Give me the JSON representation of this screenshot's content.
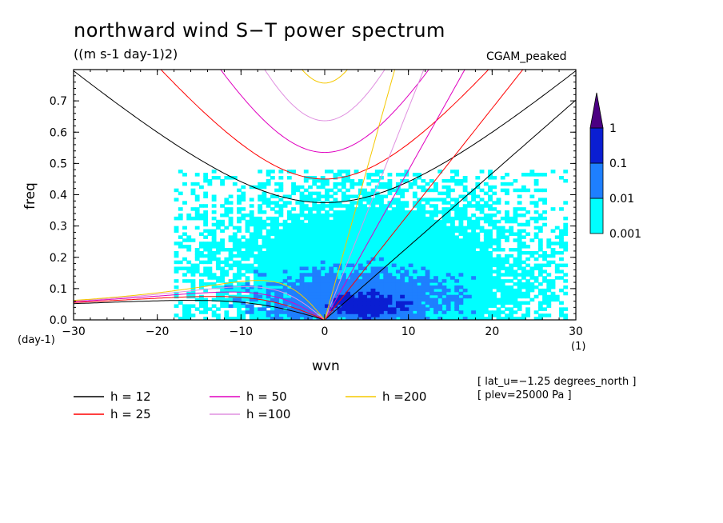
{
  "title": "northward wind S−T power spectrum",
  "subtitle": "((m s-1 day-1)2)",
  "dataset_label": "CGAM_peaked",
  "x_unit": "(1)",
  "y_unit": "(day-1)",
  "meta": [
    "[ lat_u=−1.25 degrees_north ]",
    "[ plev=25000 Pa ]"
  ],
  "chart_data": {
    "type": "heatmap",
    "title": "northward wind S−T power spectrum",
    "xlabel": "wvn",
    "ylabel": "freq",
    "xlim": [
      -30,
      30
    ],
    "ylim": [
      0,
      0.8
    ],
    "x_ticks": [
      -30,
      -20,
      -10,
      0,
      10,
      20,
      30
    ],
    "x_tick_labels": [
      "−30",
      "−20",
      "−10",
      "0",
      "10",
      "20",
      "30"
    ],
    "y_ticks": [
      0,
      0.1,
      0.2,
      0.3,
      0.4,
      0.5,
      0.6,
      0.7
    ],
    "y_tick_labels": [
      "0.0",
      "0.1",
      "0.2",
      "0.3",
      "0.4",
      "0.5",
      "0.6",
      "0.7"
    ],
    "colorbar": {
      "levels": [
        0.001,
        0.01,
        0.1,
        1
      ],
      "labels": [
        "0.001",
        "0.01",
        "0.1",
        "1"
      ],
      "colors": [
        "#00ffff",
        "#1e7fff",
        "#0a1ed2",
        "#4b0082"
      ]
    },
    "power_regions": [
      {
        "level": "0.001",
        "color": "#00ffff",
        "x_range": [
          -18,
          29
        ],
        "y_range": [
          0,
          0.48
        ],
        "center": [
          6,
          0.12
        ],
        "half_width": [
          16,
          0.25
        ]
      },
      {
        "level": "0.01",
        "color": "#1e7fff",
        "x_range": [
          -12,
          18
        ],
        "y_range": [
          0,
          0.2
        ],
        "center": [
          4,
          0.07
        ],
        "half_width": [
          11,
          0.09
        ]
      },
      {
        "level": "0.1",
        "color": "#0a1ed2",
        "x_range": [
          -2,
          11
        ],
        "y_range": [
          0,
          0.1
        ],
        "center": [
          5,
          0.05
        ],
        "half_width": [
          4.5,
          0.04
        ]
      }
    ],
    "dispersion_curves": [
      {
        "h": 12,
        "label": "h = 12",
        "color": "#000000"
      },
      {
        "h": 25,
        "label": "h = 25",
        "color": "#ff0000"
      },
      {
        "h": 50,
        "label": "h = 50",
        "color": "#e000c0"
      },
      {
        "h": 100,
        "label": "h =100",
        "color": "#e090e0"
      },
      {
        "h": 200,
        "label": "h =200",
        "color": "#f5c800"
      }
    ]
  }
}
